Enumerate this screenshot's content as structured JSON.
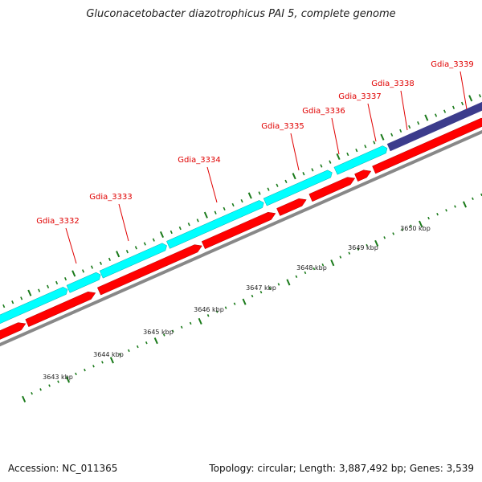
{
  "title": "Gluconacetobacter diazotrophicus PAI 5, complete genome",
  "footer": {
    "accession": "Accession: NC_011365",
    "summary": "Topology: circular; Length: 3,887,492 bp; Genes: 3,539"
  },
  "colors": {
    "forward_cds": "#00ffff",
    "reverse_cds": "#ff0000",
    "highlight_cds": "#3c3c8c",
    "backbone": "#888888",
    "tick": "#1a7a1a",
    "label": "#e00000"
  },
  "genes": [
    {
      "name": "Gdia_3332"
    },
    {
      "name": "Gdia_3333"
    },
    {
      "name": "Gdia_3334"
    },
    {
      "name": "Gdia_3335"
    },
    {
      "name": "Gdia_3336"
    },
    {
      "name": "Gdia_3337"
    },
    {
      "name": "Gdia_3338"
    },
    {
      "name": "Gdia_3339"
    }
  ],
  "scale_labels": [
    "3643 kbp",
    "3644 kbp",
    "3645 kbp",
    "3646 kbp",
    "3647 kbp",
    "3648 kbp",
    "3649 kbp",
    "3650 kbp"
  ]
}
